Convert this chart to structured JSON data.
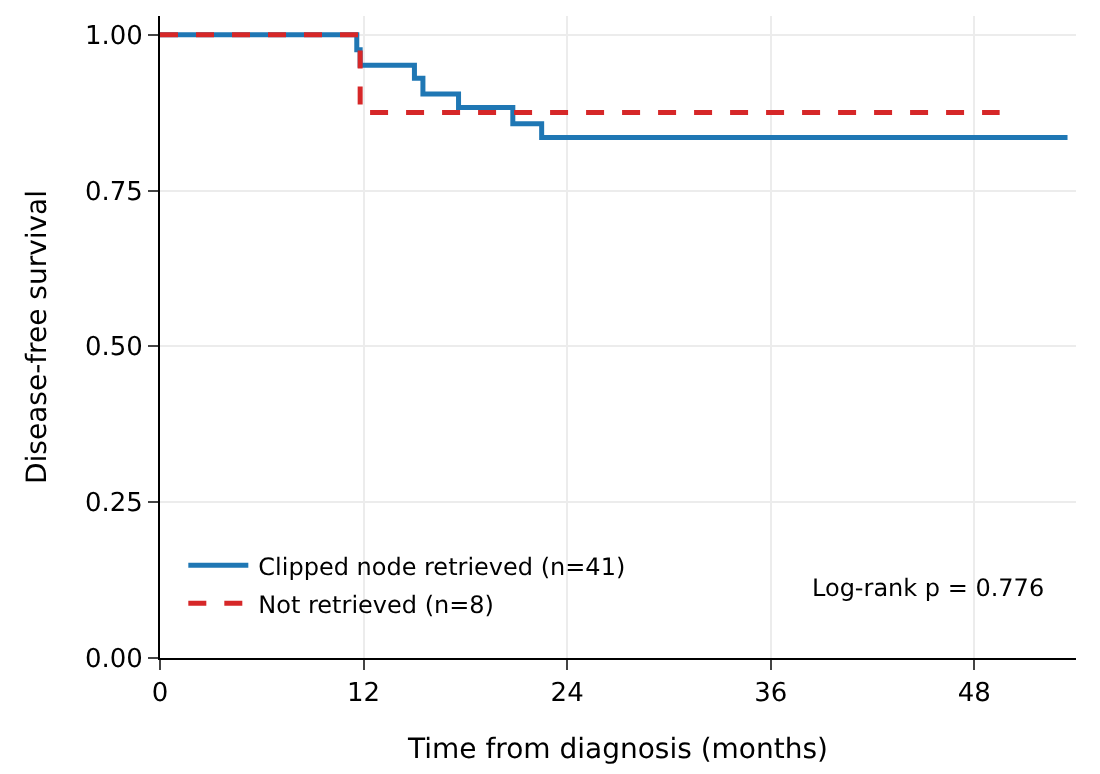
{
  "chart_data": {
    "type": "step",
    "xlabel": "Time from diagnosis (months)",
    "ylabel": "Disease-free survival",
    "series": [
      {
        "name": "Clipped node retrieved (n=41)",
        "color": "#1f77b4",
        "line_style": "solid",
        "x": [
          0,
          11.6,
          11.8,
          15.0,
          15.5,
          17.6,
          20.8,
          22.5,
          53.5
        ],
        "values": [
          1.0,
          0.976,
          0.951,
          0.93,
          0.905,
          0.883,
          0.857,
          0.835,
          0.835
        ]
      },
      {
        "name": "Not retrieved (n=8)",
        "color": "#d62728",
        "line_style": "dashed",
        "x": [
          0,
          11.8,
          49.5
        ],
        "values": [
          1.0,
          0.875,
          0.875
        ]
      }
    ],
    "xlim": [
      0,
      54
    ],
    "xticks": [
      0,
      12,
      24,
      36,
      48
    ],
    "ylim": [
      0,
      1.03
    ],
    "yticks": [
      {
        "value": 0,
        "label": "0.00"
      },
      {
        "value": 0.25,
        "label": "0.25"
      },
      {
        "value": 0.5,
        "label": "0.50"
      },
      {
        "value": 0.75,
        "label": "0.75"
      },
      {
        "value": 1.0,
        "label": "1.00"
      }
    ],
    "grid": true,
    "legend": "bottom left",
    "annotations": [
      {
        "text": "Log-rank p = 0.776"
      }
    ]
  }
}
